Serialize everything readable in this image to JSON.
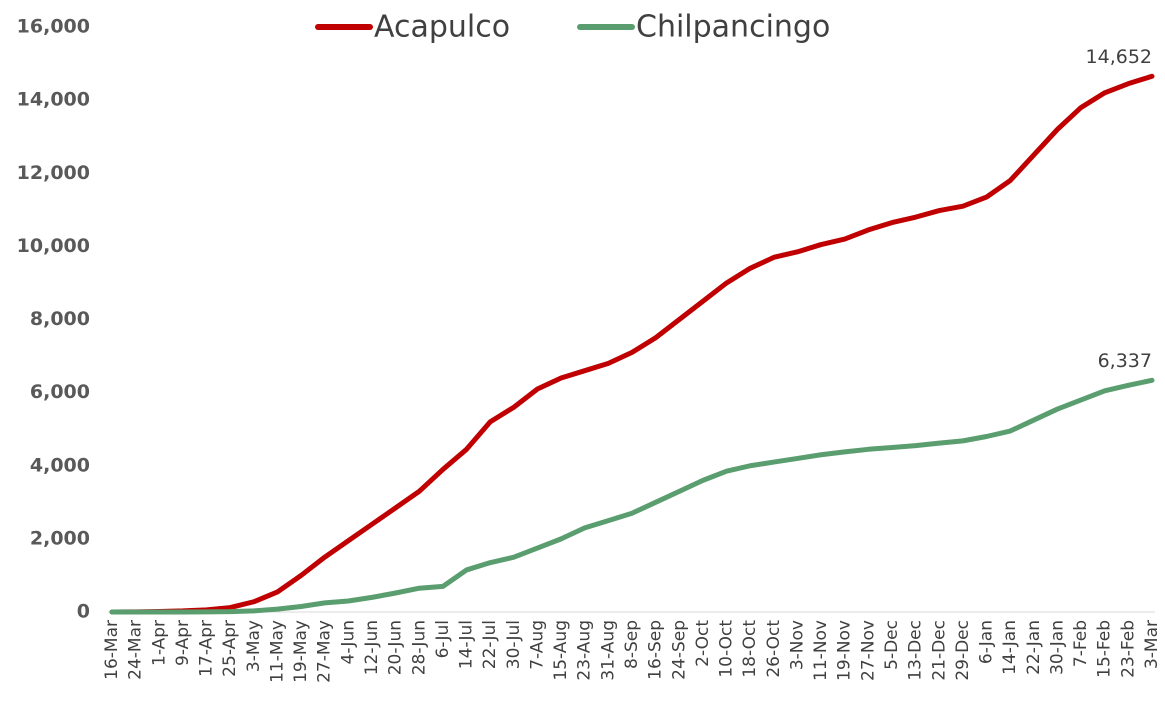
{
  "chart_data": {
    "type": "line",
    "categories": [
      "16-Mar",
      "24-Mar",
      "1-Apr",
      "9-Apr",
      "17-Apr",
      "25-Apr",
      "3-May",
      "11-May",
      "19-May",
      "27-May",
      "4-Jun",
      "12-Jun",
      "20-Jun",
      "28-Jun",
      "6-Jul",
      "14-Jul",
      "22-Jul",
      "30-Jul",
      "7-Aug",
      "15-Aug",
      "23-Aug",
      "31-Aug",
      "8-Sep",
      "16-Sep",
      "24-Sep",
      "2-Oct",
      "10-Oct",
      "18-Oct",
      "26-Oct",
      "3-Nov",
      "11-Nov",
      "19-Nov",
      "27-Nov",
      "5-Dec",
      "13-Dec",
      "21-Dec",
      "29-Dec",
      "6-Jan",
      "14-Jan",
      "22-Jan",
      "30-Jan",
      "7-Feb",
      "15-Feb",
      "23-Feb",
      "3-Mar"
    ],
    "series": [
      {
        "name": "Acapulco",
        "color": "#c00000",
        "values": [
          0,
          5,
          15,
          30,
          60,
          120,
          280,
          550,
          1000,
          1500,
          1950,
          2400,
          2850,
          3300,
          3900,
          4450,
          5200,
          5600,
          6100,
          6400,
          6600,
          6800,
          7100,
          7500,
          8000,
          8500,
          9000,
          9400,
          9700,
          9850,
          10050,
          10200,
          10450,
          10650,
          10800,
          10980,
          11100,
          11350,
          11800,
          12500,
          13200,
          13800,
          14200,
          14450,
          14652
        ],
        "value_labels": [
          null,
          null,
          null,
          null,
          null,
          null,
          null,
          null,
          null,
          null,
          null,
          null,
          null,
          null,
          null,
          null,
          null,
          null,
          null,
          null,
          null,
          null,
          null,
          null,
          null,
          null,
          null,
          null,
          null,
          null,
          null,
          null,
          null,
          null,
          null,
          null,
          null,
          null,
          null,
          null,
          null,
          null,
          null,
          null,
          "14,652"
        ]
      },
      {
        "name": "Chilpancingo",
        "color": "#5a9e6f",
        "values": [
          0,
          0,
          0,
          0,
          5,
          10,
          30,
          80,
          150,
          250,
          300,
          400,
          520,
          650,
          700,
          1150,
          1350,
          1500,
          1750,
          2000,
          2300,
          2500,
          2700,
          3000,
          3300,
          3600,
          3850,
          4000,
          4100,
          4200,
          4300,
          4380,
          4450,
          4500,
          4550,
          4620,
          4680,
          4800,
          4950,
          5250,
          5550,
          5800,
          6050,
          6200,
          6337
        ],
        "value_labels": [
          null,
          null,
          null,
          null,
          null,
          null,
          null,
          null,
          null,
          null,
          null,
          null,
          null,
          null,
          null,
          null,
          null,
          null,
          null,
          null,
          null,
          null,
          null,
          null,
          null,
          null,
          null,
          null,
          null,
          null,
          null,
          null,
          null,
          null,
          null,
          null,
          null,
          null,
          null,
          null,
          null,
          null,
          null,
          null,
          "6,337"
        ]
      }
    ],
    "ylim": [
      0,
      16000
    ],
    "yticks": [
      0,
      {
        "value": 2000,
        "label": "2,000"
      },
      {
        "value": 4000,
        "label": "4,000"
      },
      {
        "value": 6000,
        "label": "6,000"
      },
      {
        "value": 8000,
        "label": "8,000"
      },
      {
        "value": 10000,
        "label": "10,000"
      },
      {
        "value": 12000,
        "label": "12,000"
      },
      {
        "value": 14000,
        "label": "14,000"
      },
      {
        "value": 16000,
        "label": "16,000"
      }
    ],
    "grid": false,
    "legend": "top"
  }
}
